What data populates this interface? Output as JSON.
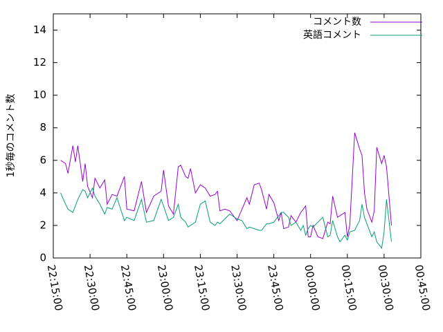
{
  "chart_data": {
    "type": "line",
    "ylabel": "1秒毎のコメント数",
    "x": [
      "22:18:00",
      "22:20:00",
      "22:21:00",
      "22:23:00",
      "22:24:00",
      "22:25:00",
      "22:27:00",
      "22:28:00",
      "22:29:00",
      "22:31:00",
      "22:32:00",
      "22:34:00",
      "22:36:00",
      "22:37:00",
      "22:39:00",
      "22:41:00",
      "22:44:00",
      "22:45:00",
      "22:48:00",
      "22:51:00",
      "22:53:00",
      "22:56:00",
      "22:59:00",
      "23:00:00",
      "23:02:00",
      "23:04:00",
      "23:06:00",
      "23:07:00",
      "23:09:00",
      "23:10:00",
      "23:11:00",
      "23:13:00",
      "23:15:00",
      "23:17:00",
      "23:19:00",
      "23:21:00",
      "23:22:00",
      "23:23:00",
      "23:25:00",
      "23:27:00",
      "23:30:00",
      "23:32:00",
      "23:34:00",
      "23:35:00",
      "23:37:00",
      "23:39:00",
      "23:40:00",
      "23:42:00",
      "23:43:00",
      "23:45:00",
      "23:47:00",
      "23:48:00",
      "23:49:00",
      "23:51:00",
      "23:52:00",
      "23:54:00",
      "23:56:00",
      "23:57:00",
      "23:58:00",
      "23:59:00",
      "00:00:00",
      "00:01:00",
      "00:03:00",
      "00:05:00",
      "00:07:00",
      "00:08:00",
      "00:09:00",
      "00:11:00",
      "00:12:00",
      "00:14:00",
      "00:15:00",
      "00:16:00",
      "00:18:00",
      "00:20:00",
      "00:21:00",
      "00:22:00",
      "00:23:00",
      "00:25:00",
      "00:26:00",
      "00:27:00",
      "00:29:00",
      "00:30:00",
      "00:31:00",
      "00:33:00"
    ],
    "series": [
      {
        "name": "コメント数",
        "color": "#9400d3",
        "values": [
          6.0,
          5.8,
          5.2,
          6.9,
          5.9,
          6.9,
          4.7,
          5.8,
          4.4,
          3.7,
          4.9,
          4.3,
          4.8,
          3.3,
          3.9,
          3.8,
          5.0,
          3.0,
          2.9,
          4.7,
          2.8,
          3.8,
          4.1,
          5.4,
          3.2,
          2.7,
          5.6,
          5.7,
          5.0,
          4.9,
          5.5,
          4.0,
          4.5,
          4.3,
          3.8,
          3.9,
          4.1,
          2.9,
          3.0,
          2.9,
          2.3,
          3.0,
          3.7,
          3.3,
          4.5,
          4.6,
          4.2,
          3.0,
          3.9,
          3.4,
          2.3,
          2.8,
          1.8,
          1.9,
          2.6,
          2.2,
          2.8,
          3.0,
          3.2,
          1.3,
          1.3,
          2.0,
          1.3,
          1.2,
          2.2,
          2.1,
          3.8,
          2.5,
          2.6,
          2.8,
          1.3,
          2.0,
          7.7,
          6.7,
          6.3,
          4.0,
          3.0,
          2.2,
          2.9,
          6.8,
          5.8,
          6.3,
          5.6,
          2.0
        ]
      },
      {
        "name": "英語コメント",
        "color": "#009e73",
        "values": [
          4.0,
          3.3,
          3.0,
          2.8,
          3.2,
          3.6,
          4.2,
          4.1,
          3.7,
          4.3,
          3.8,
          3.3,
          2.7,
          3.1,
          3.0,
          3.7,
          2.3,
          2.5,
          2.3,
          3.6,
          2.2,
          2.3,
          3.6,
          3.2,
          2.3,
          2.5,
          3.3,
          2.5,
          2.2,
          1.9,
          2.0,
          2.2,
          3.3,
          3.5,
          2.2,
          2.0,
          2.2,
          2.1,
          2.4,
          2.7,
          2.4,
          2.3,
          1.8,
          1.9,
          1.8,
          1.7,
          1.7,
          2.1,
          2.1,
          2.2,
          2.6,
          2.8,
          2.8,
          2.5,
          2.0,
          2.2,
          1.7,
          2.0,
          1.4,
          1.8,
          2.0,
          1.9,
          2.2,
          2.5,
          1.3,
          1.4,
          2.3,
          1.3,
          1.0,
          1.4,
          1.1,
          1.6,
          1.7,
          2.3,
          3.3,
          2.5,
          2.1,
          1.3,
          1.6,
          1.0,
          0.6,
          1.6,
          3.6,
          1.0
        ]
      }
    ],
    "xlim": [
      "22:15:00",
      "00:45:00"
    ],
    "xticks": [
      "22:15:00",
      "22:30:00",
      "22:45:00",
      "23:00:00",
      "23:15:00",
      "23:30:00",
      "23:45:00",
      "00:00:00",
      "00:15:00",
      "00:30:00",
      "00:45:00"
    ],
    "ylim": [
      0,
      15
    ],
    "yticks": [
      0,
      2,
      4,
      6,
      8,
      10,
      12,
      14
    ],
    "legend": "top-right",
    "grid": false
  }
}
